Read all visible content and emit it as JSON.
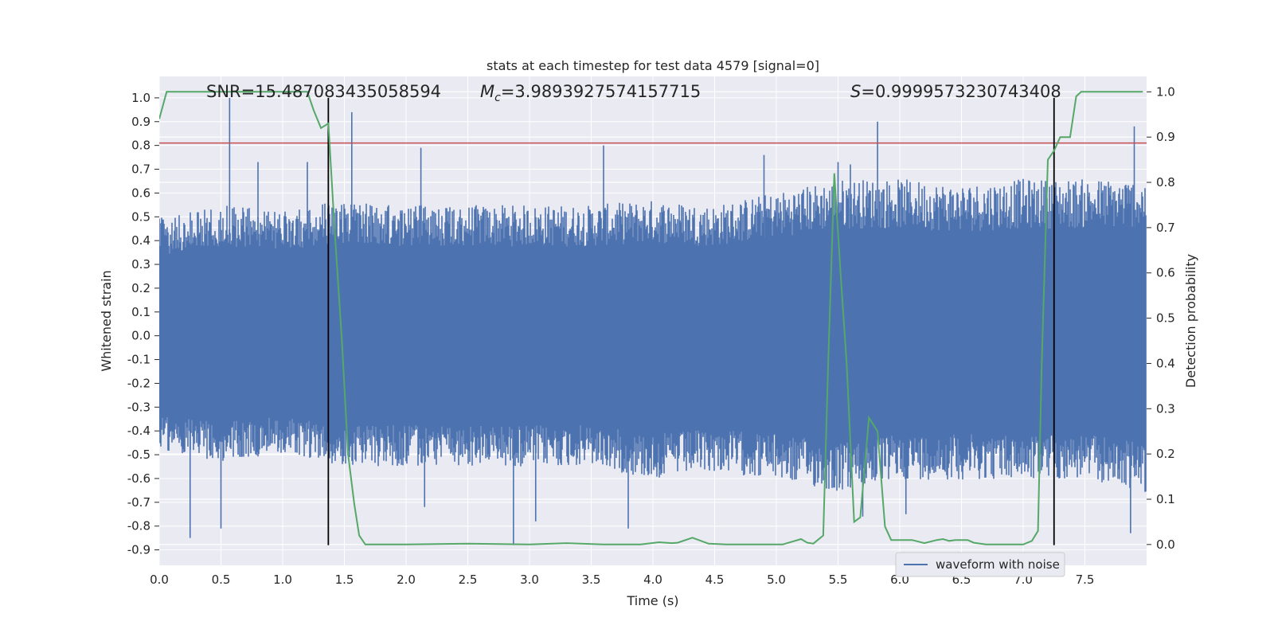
{
  "chart_data": {
    "type": "line",
    "title": "stats at each timestep for test data 4579 [signal=0]",
    "xlabel": "Time (s)",
    "ylabel": "Whitened strain",
    "y2label": "Detection probability",
    "xlim": [
      0.0,
      8.0
    ],
    "ylim": [
      -0.965,
      1.09
    ],
    "y2lim": [
      -0.046,
      1.034
    ],
    "xticks": [
      "0.0",
      "0.5",
      "1.0",
      "1.5",
      "2.0",
      "2.5",
      "3.0",
      "3.5",
      "4.0",
      "4.5",
      "5.0",
      "5.5",
      "6.0",
      "6.5",
      "7.0",
      "7.5"
    ],
    "xtick_values": [
      0.0,
      0.5,
      1.0,
      1.5,
      2.0,
      2.5,
      3.0,
      3.5,
      4.0,
      4.5,
      5.0,
      5.5,
      6.0,
      6.5,
      7.0,
      7.5
    ],
    "yticks": [
      "1.0",
      "0.9",
      "0.8",
      "0.7",
      "0.6",
      "0.5",
      "0.4",
      "0.3",
      "0.2",
      "0.1",
      "0.0",
      "-0.1",
      "-0.2",
      "-0.3",
      "-0.4",
      "-0.5",
      "-0.6",
      "-0.7",
      "-0.8",
      "-0.9"
    ],
    "ytick_values": [
      1.0,
      0.9,
      0.8,
      0.7,
      0.6,
      0.5,
      0.4,
      0.3,
      0.2,
      0.1,
      0.0,
      -0.1,
      -0.2,
      -0.3,
      -0.4,
      -0.5,
      -0.6,
      -0.7,
      -0.8,
      -0.9
    ],
    "y2ticks": [
      "1.0",
      "0.9",
      "0.8",
      "0.7",
      "0.6",
      "0.5",
      "0.4",
      "0.3",
      "0.2",
      "0.1",
      "0.0"
    ],
    "y2tick_values": [
      1.0,
      0.9,
      0.8,
      0.7,
      0.6,
      0.5,
      0.4,
      0.3,
      0.2,
      0.1,
      0.0
    ],
    "grid": true,
    "legend": {
      "position": "lower-right",
      "entries": [
        {
          "label": "waveform with noise",
          "color": "#4c72b0"
        }
      ]
    },
    "annotations": [
      {
        "text": "SNR=15.487083435058594",
        "x": 0.2,
        "y": 1.01
      },
      {
        "text_math_symbol": "M",
        "text_math_sub": "c",
        "text_rest": "=3.9893927574157715",
        "x": 2.6,
        "y": 1.01
      },
      {
        "text_math_symbol": "S",
        "text_rest": "=0.9999573230743408",
        "x": 5.6,
        "y": 1.01
      }
    ],
    "threshold_line": {
      "y": 0.81,
      "color": "#c44e52"
    },
    "vertical_markers": {
      "x": [
        1.37,
        7.25
      ],
      "color": "#000000",
      "ymin": -0.88,
      "ymax": 1.0
    },
    "series": [
      {
        "name": "waveform with noise",
        "color": "#4c72b0",
        "axis": "left",
        "envelope": {
          "x": [
            0.0,
            0.5,
            1.0,
            1.5,
            2.0,
            2.5,
            3.0,
            3.5,
            4.0,
            4.5,
            5.0,
            5.5,
            6.0,
            6.5,
            7.0,
            7.5,
            8.0
          ],
          "max": [
            0.45,
            0.5,
            0.48,
            0.52,
            0.5,
            0.5,
            0.5,
            0.5,
            0.52,
            0.5,
            0.55,
            0.6,
            0.6,
            0.58,
            0.6,
            0.6,
            0.6
          ],
          "min": [
            -0.45,
            -0.48,
            -0.45,
            -0.5,
            -0.5,
            -0.5,
            -0.5,
            -0.5,
            -0.55,
            -0.52,
            -0.55,
            -0.6,
            -0.55,
            -0.55,
            -0.55,
            -0.55,
            -0.6
          ]
        },
        "spikes": [
          {
            "x": 0.57,
            "y": 1.0
          },
          {
            "x": 1.56,
            "y": 0.94
          },
          {
            "x": 2.12,
            "y": 0.79
          },
          {
            "x": 3.6,
            "y": 0.8
          },
          {
            "x": 4.9,
            "y": 0.76
          },
          {
            "x": 5.5,
            "y": 0.73
          },
          {
            "x": 5.82,
            "y": 0.9
          },
          {
            "x": 7.9,
            "y": 0.88
          },
          {
            "x": 0.8,
            "y": 0.73
          },
          {
            "x": 0.25,
            "y": -0.85
          },
          {
            "x": 0.5,
            "y": -0.81
          },
          {
            "x": 2.87,
            "y": -0.88
          },
          {
            "x": 3.8,
            "y": -0.81
          },
          {
            "x": 5.7,
            "y": -0.76
          },
          {
            "x": 7.87,
            "y": -0.83
          },
          {
            "x": 3.05,
            "y": -0.78
          },
          {
            "x": 2.15,
            "y": -0.72
          },
          {
            "x": 6.05,
            "y": -0.75
          },
          {
            "x": 5.6,
            "y": 0.72
          },
          {
            "x": 1.2,
            "y": 0.73
          }
        ]
      },
      {
        "name": "",
        "color": "#55a868",
        "axis": "right",
        "x": [
          0.0,
          0.06,
          0.2,
          0.6,
          1.0,
          1.2,
          1.25,
          1.31,
          1.37,
          1.42,
          1.48,
          1.53,
          1.58,
          1.62,
          1.67,
          1.72,
          2.0,
          2.5,
          3.0,
          3.3,
          3.6,
          3.9,
          4.05,
          4.15,
          4.2,
          4.32,
          4.45,
          4.6,
          4.9,
          5.05,
          5.2,
          5.25,
          5.3,
          5.38,
          5.42,
          5.47,
          5.52,
          5.57,
          5.63,
          5.68,
          5.75,
          5.82,
          5.88,
          5.93,
          6.0,
          6.1,
          6.2,
          6.3,
          6.35,
          6.4,
          6.45,
          6.55,
          6.6,
          6.7,
          6.8,
          7.0,
          7.07,
          7.12,
          7.15,
          7.2,
          7.25,
          7.3,
          7.38,
          7.43,
          7.47,
          7.6,
          7.97
        ],
        "y": [
          0.94,
          1.0,
          1.0,
          1.0,
          1.0,
          1.0,
          0.96,
          0.92,
          0.93,
          0.7,
          0.45,
          0.2,
          0.09,
          0.02,
          0.0,
          0.0,
          0.0,
          0.002,
          0.0,
          0.003,
          0.0,
          0.0,
          0.005,
          0.003,
          0.004,
          0.015,
          0.002,
          0.0,
          0.0,
          0.0,
          0.012,
          0.004,
          0.002,
          0.02,
          0.4,
          0.82,
          0.6,
          0.4,
          0.05,
          0.06,
          0.28,
          0.25,
          0.04,
          0.01,
          0.01,
          0.01,
          0.003,
          0.01,
          0.012,
          0.008,
          0.01,
          0.01,
          0.004,
          0.0,
          0.0,
          0.0,
          0.008,
          0.03,
          0.4,
          0.85,
          0.87,
          0.9,
          0.9,
          0.99,
          1.0,
          1.0,
          1.0
        ]
      }
    ]
  }
}
